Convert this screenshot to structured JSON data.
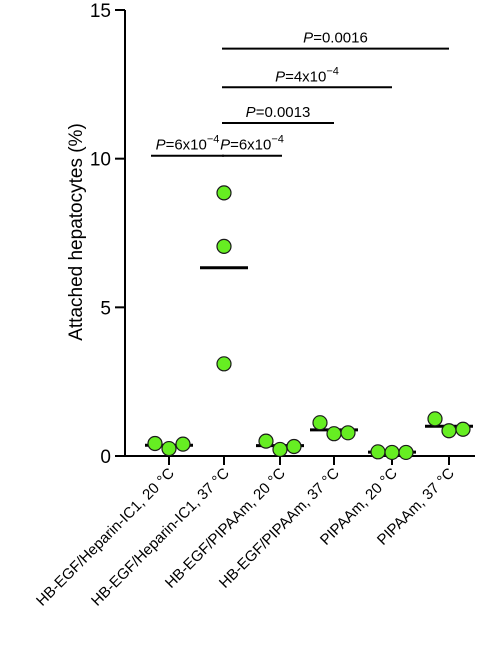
{
  "chart_data": {
    "type": "scatter",
    "title": "",
    "ylabel": "Attached hepatocytes (%)",
    "ylim": [
      0,
      15
    ],
    "yticks": [
      "0",
      "5",
      "10",
      "15"
    ],
    "grid": false,
    "legend": "none",
    "point_color": "#66ee22",
    "point_stroke": "#1a1a1a",
    "categories": [
      "HB-EGF/Heparin-IC1, 20 °C",
      "HB-EGF/Heparin-IC1, 37 °C",
      "HB-EGF/PIPAAm, 20 °C",
      "HB-EGF/PIPAAm, 37 °C",
      "PIPAAm, 20 °C",
      "PIPAAm, 37 °C"
    ],
    "points": [
      [
        0.42,
        0.25,
        0.4
      ],
      [
        8.85,
        7.05,
        3.1
      ],
      [
        0.5,
        0.22,
        0.32
      ],
      [
        1.12,
        0.75,
        0.78
      ],
      [
        0.14,
        0.12,
        0.12
      ],
      [
        1.25,
        0.85,
        0.9
      ]
    ],
    "means": [
      0.36,
      6.33,
      0.35,
      0.88,
      0.13,
      1.0
    ],
    "comparisons": [
      {
        "from": 0,
        "to": 1,
        "level": 10.1,
        "prefix": "P",
        "text": "=6x10",
        "sup": "−4"
      },
      {
        "from": 1,
        "to": 2,
        "level": 10.1,
        "prefix": "P",
        "text": "=6x10",
        "sup": "−4"
      },
      {
        "from": 1,
        "to": 3,
        "level": 11.2,
        "prefix": "P",
        "text": "=0.0013",
        "sup": ""
      },
      {
        "from": 1,
        "to": 4,
        "level": 12.4,
        "prefix": "P",
        "text": "=4x10",
        "sup": "−4"
      },
      {
        "from": 1,
        "to": 5,
        "level": 13.7,
        "prefix": "P",
        "text": "=0.0016",
        "sup": ""
      }
    ]
  }
}
